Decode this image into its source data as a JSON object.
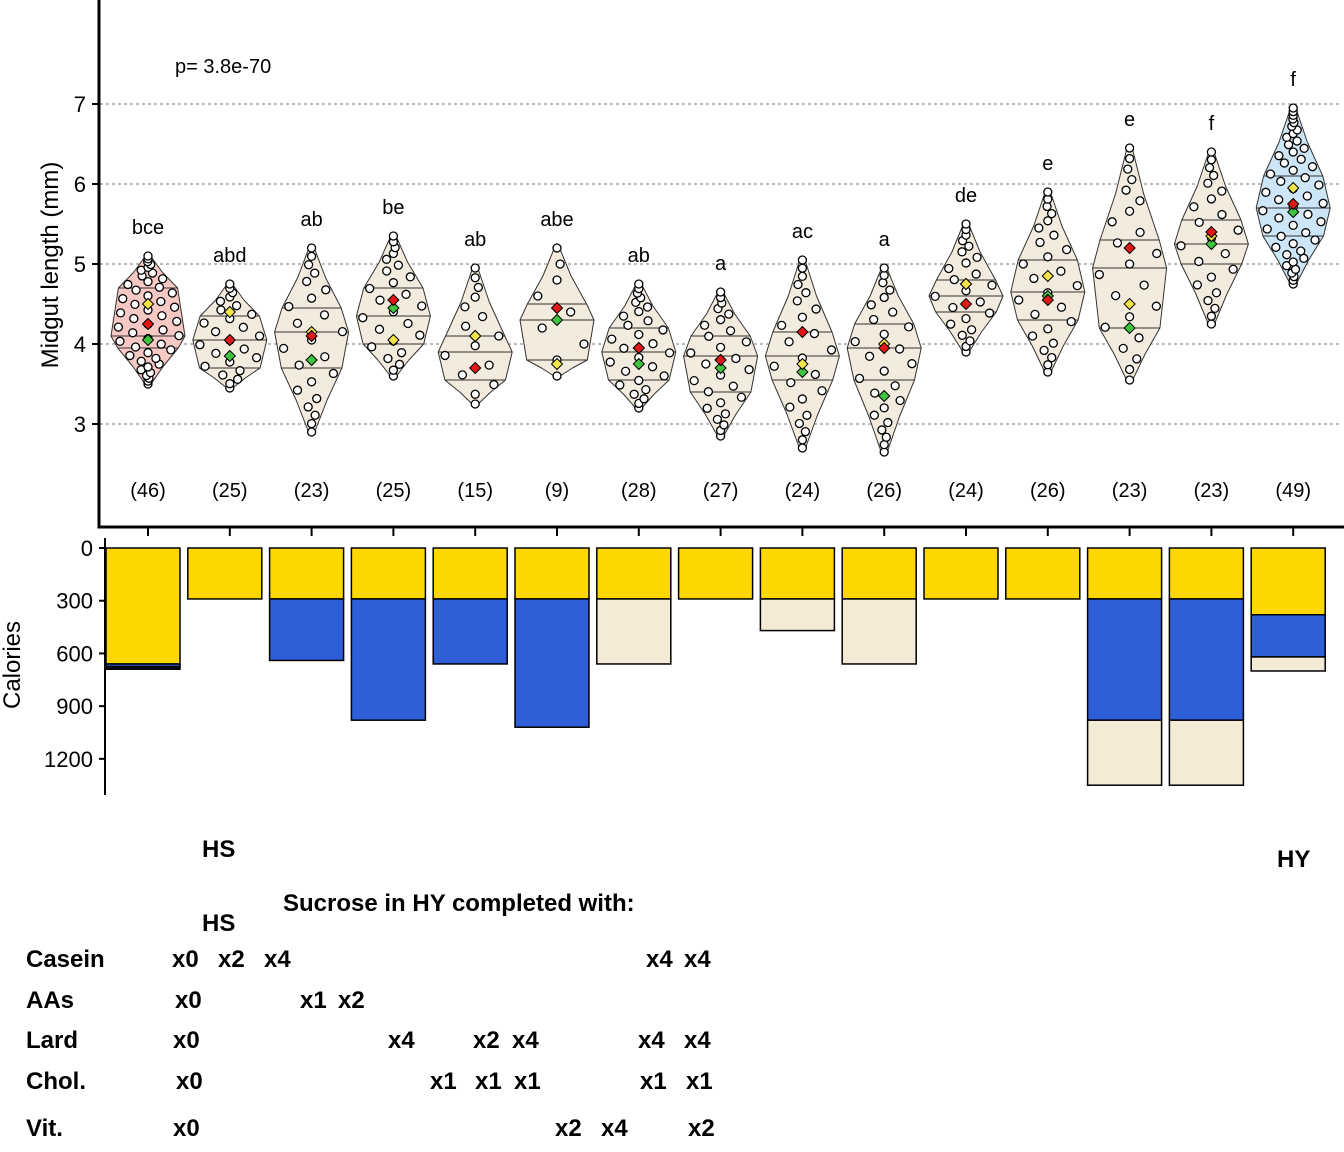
{
  "chart_data": [
    {
      "type": "violin",
      "title": "",
      "annotation": "p= 3.8e-70",
      "ylabel": "Midgut length (mm)",
      "ylim": [
        2.1,
        8.3
      ],
      "yticks": [
        3,
        4,
        5,
        6,
        7
      ],
      "grid_y": true,
      "fill_colors": [
        "#f8c9c4",
        "#f3ebdd",
        "#f3ebdd",
        "#f3ebdd",
        "#f3ebdd",
        "#f3ebdd",
        "#f3ebdd",
        "#f3ebdd",
        "#f3ebdd",
        "#f3ebdd",
        "#f3ebdd",
        "#f3ebdd",
        "#f3ebdd",
        "#f3ebdd",
        "#cde6f7"
      ],
      "marker_colors": {
        "red": "#e01818",
        "yellow": "#f4e44a",
        "green": "#3ec43e"
      },
      "groups": [
        {
          "letters": "bce",
          "n": "(46)",
          "min": 3.5,
          "max": 5.1,
          "q1": 3.95,
          "median": 4.1,
          "q3": 4.7,
          "red": 4.25,
          "yellow": 4.5,
          "green": 4.05
        },
        {
          "letters": "abd",
          "n": "(25)",
          "min": 3.45,
          "max": 4.75,
          "q1": 3.7,
          "median": 4.05,
          "q3": 4.35,
          "red": 4.05,
          "yellow": 4.4,
          "green": 3.85
        },
        {
          "letters": "ab",
          "n": "(23)",
          "min": 2.9,
          "max": 5.2,
          "q1": 3.7,
          "median": 4.15,
          "q3": 4.45,
          "red": 4.1,
          "yellow": 4.15,
          "green": 3.8
        },
        {
          "letters": "be",
          "n": "(25)",
          "min": 3.6,
          "max": 5.35,
          "q1": 4.0,
          "median": 4.35,
          "q3": 4.7,
          "red": 4.55,
          "yellow": 4.05,
          "green": 4.45
        },
        {
          "letters": "ab",
          "n": "(15)",
          "min": 3.25,
          "max": 4.95,
          "q1": 3.55,
          "median": 3.9,
          "q3": 4.1,
          "red": 3.7,
          "yellow": 4.1,
          "green": 4.1
        },
        {
          "letters": "abe",
          "n": "(9)",
          "min": 3.6,
          "max": 5.2,
          "q1": 3.8,
          "median": 4.3,
          "q3": 4.5,
          "red": 4.45,
          "yellow": 3.75,
          "green": 4.3
        },
        {
          "letters": "ab",
          "n": "(28)",
          "min": 3.2,
          "max": 4.75,
          "q1": 3.55,
          "median": 3.9,
          "q3": 4.2,
          "red": 3.95,
          "yellow": 3.95,
          "green": 3.75
        },
        {
          "letters": "a",
          "n": "(27)",
          "min": 2.85,
          "max": 4.65,
          "q1": 3.4,
          "median": 3.85,
          "q3": 4.1,
          "red": 3.8,
          "yellow": 3.8,
          "green": 3.7
        },
        {
          "letters": "ac",
          "n": "(24)",
          "min": 2.7,
          "max": 5.05,
          "q1": 3.55,
          "median": 3.85,
          "q3": 4.15,
          "red": 4.15,
          "yellow": 3.75,
          "green": 3.65
        },
        {
          "letters": "a",
          "n": "(26)",
          "min": 2.65,
          "max": 4.95,
          "q1": 3.55,
          "median": 3.95,
          "q3": 4.25,
          "red": 3.95,
          "yellow": 4.0,
          "green": 3.35
        },
        {
          "letters": "de",
          "n": "(24)",
          "min": 3.9,
          "max": 5.5,
          "q1": 4.4,
          "median": 4.6,
          "q3": 4.8,
          "red": 4.5,
          "yellow": 4.75,
          "green": 4.75
        },
        {
          "letters": "e",
          "n": "(26)",
          "min": 3.65,
          "max": 5.9,
          "q1": 4.3,
          "median": 4.65,
          "q3": 5.05,
          "red": 4.55,
          "yellow": 4.85,
          "green": 4.6
        },
        {
          "letters": "e",
          "n": "(23)",
          "min": 3.55,
          "max": 6.45,
          "q1": 4.2,
          "median": 4.95,
          "q3": 5.3,
          "red": 5.2,
          "yellow": 4.5,
          "green": 4.2
        },
        {
          "letters": "f",
          "n": "(23)",
          "min": 4.25,
          "max": 6.4,
          "q1": 5.0,
          "median": 5.25,
          "q3": 5.55,
          "red": 5.4,
          "yellow": 5.35,
          "green": 5.25
        },
        {
          "letters": "f",
          "n": "(49)",
          "min": 4.75,
          "max": 6.95,
          "q1": 5.35,
          "median": 5.7,
          "q3": 6.1,
          "red": 5.75,
          "yellow": 5.95,
          "green": 5.65
        }
      ]
    },
    {
      "type": "stacked-bar",
      "title": "",
      "ylabel": "Calories",
      "ylim": [
        0,
        1400
      ],
      "yticks": [
        0,
        300,
        600,
        900,
        1200
      ],
      "axis_inverted": true,
      "segment_colors": {
        "sucrose": "#ffd700",
        "protein": "#2f5fd8",
        "lard": "#f3ebd5",
        "other": "#111111"
      },
      "bars": [
        [
          {
            "type": "sucrose",
            "value": 660
          },
          {
            "type": "protein",
            "value": 15
          },
          {
            "type": "other",
            "value": 15
          }
        ],
        [
          {
            "type": "sucrose",
            "value": 290
          }
        ],
        [
          {
            "type": "sucrose",
            "value": 290
          },
          {
            "type": "protein",
            "value": 350
          }
        ],
        [
          {
            "type": "sucrose",
            "value": 290
          },
          {
            "type": "protein",
            "value": 690
          }
        ],
        [
          {
            "type": "sucrose",
            "value": 290
          },
          {
            "type": "protein",
            "value": 370
          }
        ],
        [
          {
            "type": "sucrose",
            "value": 290
          },
          {
            "type": "protein",
            "value": 730
          }
        ],
        [
          {
            "type": "sucrose",
            "value": 290
          },
          {
            "type": "lard",
            "value": 370
          }
        ],
        [
          {
            "type": "sucrose",
            "value": 290
          }
        ],
        [
          {
            "type": "sucrose",
            "value": 290
          },
          {
            "type": "lard",
            "value": 180
          }
        ],
        [
          {
            "type": "sucrose",
            "value": 290
          },
          {
            "type": "lard",
            "value": 370
          }
        ],
        [
          {
            "type": "sucrose",
            "value": 290
          }
        ],
        [
          {
            "type": "sucrose",
            "value": 290
          }
        ],
        [
          {
            "type": "sucrose",
            "value": 290
          },
          {
            "type": "protein",
            "value": 690
          },
          {
            "type": "lard",
            "value": 370
          }
        ],
        [
          {
            "type": "sucrose",
            "value": 290
          },
          {
            "type": "protein",
            "value": 690
          },
          {
            "type": "lard",
            "value": 370
          }
        ],
        [
          {
            "type": "sucrose",
            "value": 380
          },
          {
            "type": "protein",
            "value": 240
          },
          {
            "type": "lard",
            "value": 80
          }
        ]
      ]
    }
  ],
  "labels": {
    "hs_top": "HS",
    "hy_right": "HY",
    "hs_bottom": "HS",
    "completion_title": "Sucrose in HY completed with:",
    "rows": [
      {
        "name": "Casein",
        "entries": [
          "x0",
          "x2",
          "x4",
          "x4",
          "x4"
        ]
      },
      {
        "name": "AAs",
        "entries": [
          "x0",
          "x1",
          "x2"
        ]
      },
      {
        "name": "Lard",
        "entries": [
          "x0",
          "x4",
          "x2",
          "x4",
          "x4",
          "x4"
        ]
      },
      {
        "name": "Chol.",
        "entries": [
          "x0",
          "x1",
          "x1",
          "x1",
          "x1",
          "x1"
        ]
      },
      {
        "name": "Vit.",
        "entries": [
          "x0",
          "x2",
          "x4",
          "x2"
        ]
      }
    ]
  }
}
